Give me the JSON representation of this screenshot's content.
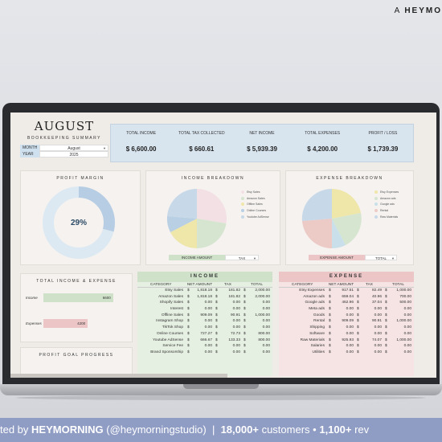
{
  "brand": {
    "prefix": "A",
    "name": "HEYMO"
  },
  "dashboard": {
    "month": "AUGUST",
    "subtitle": "BOOKKEEPING SUMMARY",
    "month_label": "MONTH",
    "month_value": "August",
    "year_label": "YEAR",
    "year_value": "2025"
  },
  "kpis": [
    {
      "label": "TOTAL INCOME",
      "value": "$ 6,600.00"
    },
    {
      "label": "TOTAL TAX COLLECTED",
      "value": "$ 660.61"
    },
    {
      "label": "NET INCOME",
      "value": "$ 5,939.39"
    },
    {
      "label": "TOTAL EXPENSES",
      "value": "$ 4,200.00"
    },
    {
      "label": "PROFIT / LOSS",
      "value": "$ 1,739.39"
    }
  ],
  "profit_margin": {
    "title": "PROFIT MARGIN",
    "value_label": "29%",
    "percent": 29
  },
  "income_breakdown": {
    "title": "INCOME BREAKDOWN",
    "legend": [
      "Etsy Sales",
      "Amazon Sales",
      "Offline Sales",
      "Online Courses",
      "Youtube AdSense"
    ],
    "select_label": "INCOME AMOUNT",
    "select_value": "TAX"
  },
  "expense_breakdown": {
    "title": "EXPENSE BREAKDOWN",
    "legend": [
      "Etsy Expenses",
      "Amazon ads",
      "Google ads",
      "Rental",
      "Raw Materials"
    ],
    "select_label": "EXPENSE AMOUNT",
    "select_value": "TOTAL"
  },
  "total_ie": {
    "title": "TOTAL INCOME & EXPENSE",
    "income_label": "Income",
    "income_value": "6600",
    "income_amount": 6600,
    "expenses_label": "Expenses",
    "expenses_value": "4200",
    "expenses_amount": 4200
  },
  "profit_goal": {
    "title": "PROFIT GOAL PROGRESS"
  },
  "income_table": {
    "title": "INCOME",
    "columns": [
      "CATEGORY",
      "NET AMOUNT",
      "TAX",
      "TOTAL"
    ],
    "rows": [
      [
        "Etsy Sales",
        "$",
        "1,818.18",
        "$",
        "181.82",
        "$",
        "2,000.00"
      ],
      [
        "Amazon Sales",
        "$",
        "1,818.18",
        "$",
        "181.82",
        "$",
        "2,000.00"
      ],
      [
        "Shopify Sales",
        "$",
        "0.00",
        "$",
        "0.00",
        "$",
        "0.00"
      ],
      [
        "Interest",
        "$",
        "0.00",
        "$",
        "0.00",
        "$",
        "0.00"
      ],
      [
        "Offline Sales",
        "$",
        "909.09",
        "$",
        "90.91",
        "$",
        "1,000.00"
      ],
      [
        "Instagram Shop",
        "$",
        "0.00",
        "$",
        "0.00",
        "$",
        "0.00"
      ],
      [
        "TikTok Shop",
        "$",
        "0.00",
        "$",
        "0.00",
        "$",
        "0.00"
      ],
      [
        "Online Courses",
        "$",
        "727.27",
        "$",
        "72.73",
        "$",
        "800.00"
      ],
      [
        "Youtube AdSense",
        "$",
        "666.67",
        "$",
        "133.33",
        "$",
        "800.00"
      ],
      [
        "Service Fee",
        "$",
        "0.00",
        "$",
        "0.00",
        "$",
        "0.00"
      ],
      [
        "Brand Sponsorship",
        "$",
        "0.00",
        "$",
        "0.00",
        "$",
        "0.00"
      ]
    ]
  },
  "expense_table": {
    "title": "EXPENSE",
    "columns": [
      "CATEGORY",
      "NET AMOUNT",
      "TAX",
      "TOTAL"
    ],
    "rows": [
      [
        "Etsy Expenses",
        "$",
        "917.51",
        "$",
        "82.49",
        "$",
        "1,000.00"
      ],
      [
        "Amazon ads",
        "$",
        "659.04",
        "$",
        "40.96",
        "$",
        "700.00"
      ],
      [
        "Google ads",
        "$",
        "462.96",
        "$",
        "37.04",
        "$",
        "500.00"
      ],
      [
        "Meta ads",
        "$",
        "0.00",
        "$",
        "0.00",
        "$",
        "0.00"
      ],
      [
        "Goods",
        "$",
        "0.00",
        "$",
        "0.00",
        "$",
        "0.00"
      ],
      [
        "Rental",
        "$",
        "909.09",
        "$",
        "90.91",
        "$",
        "1,000.00"
      ],
      [
        "Shipping",
        "$",
        "0.00",
        "$",
        "0.00",
        "$",
        "0.00"
      ],
      [
        "Software",
        "$",
        "0.00",
        "$",
        "0.00",
        "$",
        "0.00"
      ],
      [
        "Raw Materials",
        "$",
        "925.93",
        "$",
        "74.07",
        "$",
        "1,000.00"
      ],
      [
        "Salaries",
        "$",
        "0.00",
        "$",
        "0.00",
        "$",
        "0.00"
      ],
      [
        "Utilities",
        "$",
        "0.00",
        "$",
        "0.00",
        "$",
        "0.00"
      ]
    ]
  },
  "banner": {
    "prefix": "ted by",
    "brand": "HEYMORNING",
    "handle": "(@heymorningstudio)",
    "sep1": "|",
    "customers": "18,000+",
    "customers_label": "customers",
    "sep2": "•",
    "reviews": "1,100+",
    "reviews_label": "rev"
  },
  "colors": {
    "kpi_bg": "#d8e4ee",
    "income_green": "#cfe2c9",
    "expense_red": "#ecc6c6",
    "donut_blue": "#b7cde3",
    "donut_track": "#dce9f2"
  }
}
